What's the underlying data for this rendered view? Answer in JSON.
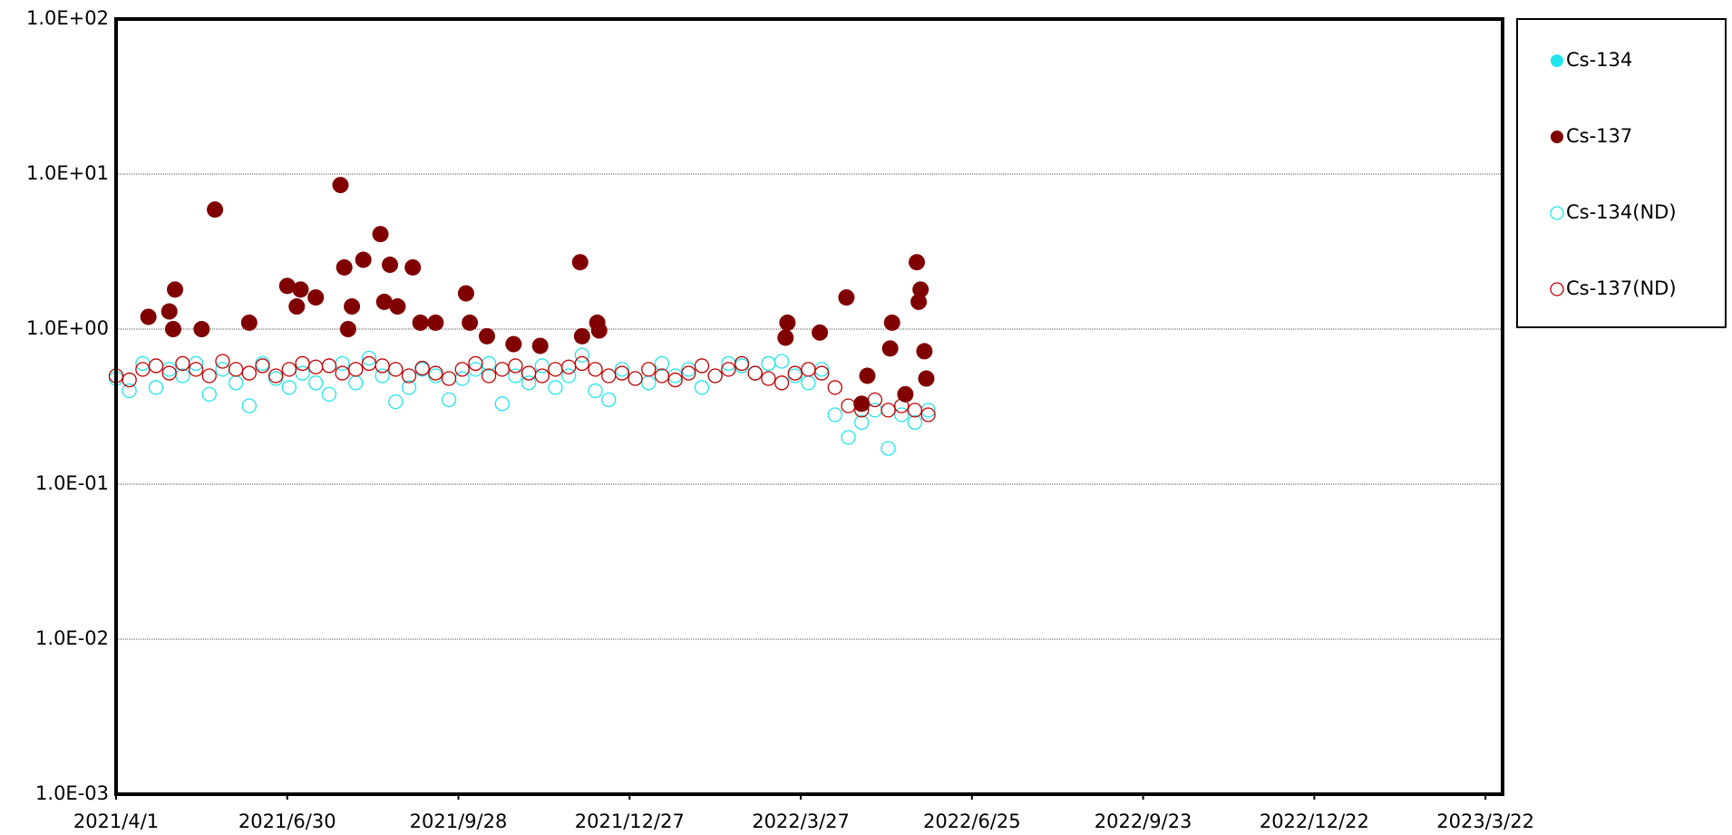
{
  "chart_data": {
    "type": "scatter",
    "xlim": [
      "2021/4/1",
      "2023/3/31"
    ],
    "xticks": [
      "2021/4/1",
      "2021/6/30",
      "2021/9/28",
      "2021/12/27",
      "2022/3/27",
      "2022/6/25",
      "2022/9/23",
      "2022/12/22",
      "2023/3/22"
    ],
    "ylim": [
      0.001,
      100
    ],
    "log_y": true,
    "grid": true,
    "legend": "right",
    "yticks": [
      {
        "value": 0.001,
        "label": "1.0E-03"
      },
      {
        "value": 0.01,
        "label": "1.0E-02"
      },
      {
        "value": 0.1,
        "label": "1.0E-01"
      },
      {
        "value": 1,
        "label": "1.0E+00"
      },
      {
        "value": 10,
        "label": "1.0E+01"
      },
      {
        "value": 100,
        "label": "1.0E+02"
      }
    ],
    "series": [
      {
        "name": "Cs-134",
        "color": "#22e4ee",
        "marker": "filled",
        "x": [],
        "values": []
      },
      {
        "name": "Cs-137",
        "color": "#800000",
        "marker": "filled",
        "x": [
          "2021/4/18",
          "2021/4/29",
          "2021/5/2",
          "2021/5/1",
          "2021/5/23",
          "2021/5/16",
          "2021/6/10",
          "2021/6/30",
          "2021/7/7",
          "2021/7/5",
          "2021/7/15",
          "2021/7/28",
          "2021/7/30",
          "2021/8/1",
          "2021/8/3",
          "2021/8/9",
          "2021/8/18",
          "2021/8/20",
          "2021/8/23",
          "2021/8/27",
          "2021/9/4",
          "2021/9/8",
          "2021/9/16",
          "2021/10/2",
          "2021/10/4",
          "2021/10/13",
          "2021/10/27",
          "2021/11/10",
          "2021/12/1",
          "2021/12/2",
          "2021/12/10",
          "2021/12/11",
          "2022/3/20",
          "2022/3/19",
          "2022/4/6",
          "2022/4/20",
          "2022/5/1",
          "2022/5/14",
          "2022/5/13",
          "2022/5/27",
          "2022/5/29",
          "2022/5/28",
          "2022/5/31",
          "2022/6/1",
          "2022/4/28",
          "2022/5/21"
        ],
        "values": [
          1.2,
          1.3,
          1.8,
          1.0,
          5.9,
          1.0,
          1.1,
          1.9,
          1.8,
          1.4,
          1.6,
          8.5,
          2.5,
          1.0,
          1.4,
          2.8,
          4.1,
          1.5,
          2.6,
          1.4,
          2.5,
          1.1,
          1.1,
          1.7,
          1.1,
          0.9,
          0.8,
          0.78,
          2.7,
          0.9,
          1.1,
          0.98,
          1.1,
          0.88,
          0.95,
          1.6,
          0.5,
          1.1,
          0.75,
          2.7,
          1.8,
          1.5,
          0.72,
          0.48,
          0.33,
          0.38
        ]
      },
      {
        "name": "Cs-134(ND)",
        "color": "#22e4ee",
        "marker": "open",
        "x": [
          "2021/4/1",
          "2021/4/8",
          "2021/4/15",
          "2021/4/22",
          "2021/4/29",
          "2021/5/6",
          "2021/5/13",
          "2021/5/20",
          "2021/5/27",
          "2021/6/3",
          "2021/6/10",
          "2021/6/17",
          "2021/6/24",
          "2021/7/1",
          "2021/7/8",
          "2021/7/15",
          "2021/7/22",
          "2021/7/29",
          "2021/8/5",
          "2021/8/12",
          "2021/8/19",
          "2021/8/26",
          "2021/9/2",
          "2021/9/9",
          "2021/9/16",
          "2021/9/23",
          "2021/9/30",
          "2021/10/7",
          "2021/10/14",
          "2021/10/21",
          "2021/10/28",
          "2021/11/4",
          "2021/11/11",
          "2021/11/18",
          "2021/11/25",
          "2021/12/2",
          "2021/12/9",
          "2021/12/16",
          "2021/12/23",
          "2021/12/30",
          "2022/1/6",
          "2022/1/13",
          "2022/1/20",
          "2022/1/27",
          "2022/2/3",
          "2022/2/10",
          "2022/2/17",
          "2022/2/24",
          "2022/3/3",
          "2022/3/10",
          "2022/3/17",
          "2022/3/24",
          "2022/3/31",
          "2022/4/7",
          "2022/4/14",
          "2022/4/21",
          "2022/4/28",
          "2022/5/5",
          "2022/5/12",
          "2022/5/19",
          "2022/5/26",
          "2022/6/2"
        ],
        "values": [
          0.48,
          0.4,
          0.6,
          0.42,
          0.55,
          0.5,
          0.6,
          0.38,
          0.55,
          0.45,
          0.32,
          0.6,
          0.48,
          0.42,
          0.52,
          0.45,
          0.38,
          0.6,
          0.45,
          0.65,
          0.5,
          0.34,
          0.42,
          0.55,
          0.5,
          0.35,
          0.48,
          0.55,
          0.6,
          0.33,
          0.5,
          0.45,
          0.58,
          0.42,
          0.5,
          0.68,
          0.4,
          0.35,
          0.55,
          0.48,
          0.45,
          0.6,
          0.5,
          0.55,
          0.42,
          0.5,
          0.6,
          0.58,
          0.52,
          0.6,
          0.62,
          0.5,
          0.45,
          0.55,
          0.28,
          0.2,
          0.25,
          0.3,
          0.17,
          0.28,
          0.25,
          0.3
        ]
      },
      {
        "name": "Cs-137(ND)",
        "color": "#c00000",
        "marker": "open",
        "x": [
          "2021/4/1",
          "2021/4/8",
          "2021/4/15",
          "2021/4/22",
          "2021/4/29",
          "2021/5/6",
          "2021/5/13",
          "2021/5/20",
          "2021/5/27",
          "2021/6/3",
          "2021/6/10",
          "2021/6/17",
          "2021/6/24",
          "2021/7/1",
          "2021/7/8",
          "2021/7/15",
          "2021/7/22",
          "2021/7/29",
          "2021/8/5",
          "2021/8/12",
          "2021/8/19",
          "2021/8/26",
          "2021/9/2",
          "2021/9/9",
          "2021/9/16",
          "2021/9/23",
          "2021/9/30",
          "2021/10/7",
          "2021/10/14",
          "2021/10/21",
          "2021/10/28",
          "2021/11/4",
          "2021/11/11",
          "2021/11/18",
          "2021/11/25",
          "2021/12/2",
          "2021/12/9",
          "2021/12/16",
          "2021/12/23",
          "2021/12/30",
          "2022/1/6",
          "2022/1/13",
          "2022/1/20",
          "2022/1/27",
          "2022/2/3",
          "2022/2/10",
          "2022/2/17",
          "2022/2/24",
          "2022/3/3",
          "2022/3/10",
          "2022/3/17",
          "2022/3/24",
          "2022/3/31",
          "2022/4/7",
          "2022/4/14",
          "2022/4/21",
          "2022/4/28",
          "2022/5/5",
          "2022/5/12",
          "2022/5/19",
          "2022/5/26",
          "2022/6/2"
        ],
        "values": [
          0.5,
          0.47,
          0.55,
          0.58,
          0.52,
          0.6,
          0.55,
          0.5,
          0.62,
          0.55,
          0.52,
          0.58,
          0.5,
          0.55,
          0.6,
          0.57,
          0.58,
          0.52,
          0.55,
          0.6,
          0.58,
          0.55,
          0.5,
          0.56,
          0.52,
          0.48,
          0.55,
          0.6,
          0.5,
          0.55,
          0.58,
          0.52,
          0.5,
          0.55,
          0.57,
          0.6,
          0.55,
          0.5,
          0.52,
          0.48,
          0.55,
          0.5,
          0.47,
          0.52,
          0.58,
          0.5,
          0.55,
          0.6,
          0.52,
          0.48,
          0.45,
          0.52,
          0.55,
          0.52,
          0.42,
          0.32,
          0.3,
          0.35,
          0.3,
          0.32,
          0.3,
          0.28
        ]
      }
    ]
  }
}
